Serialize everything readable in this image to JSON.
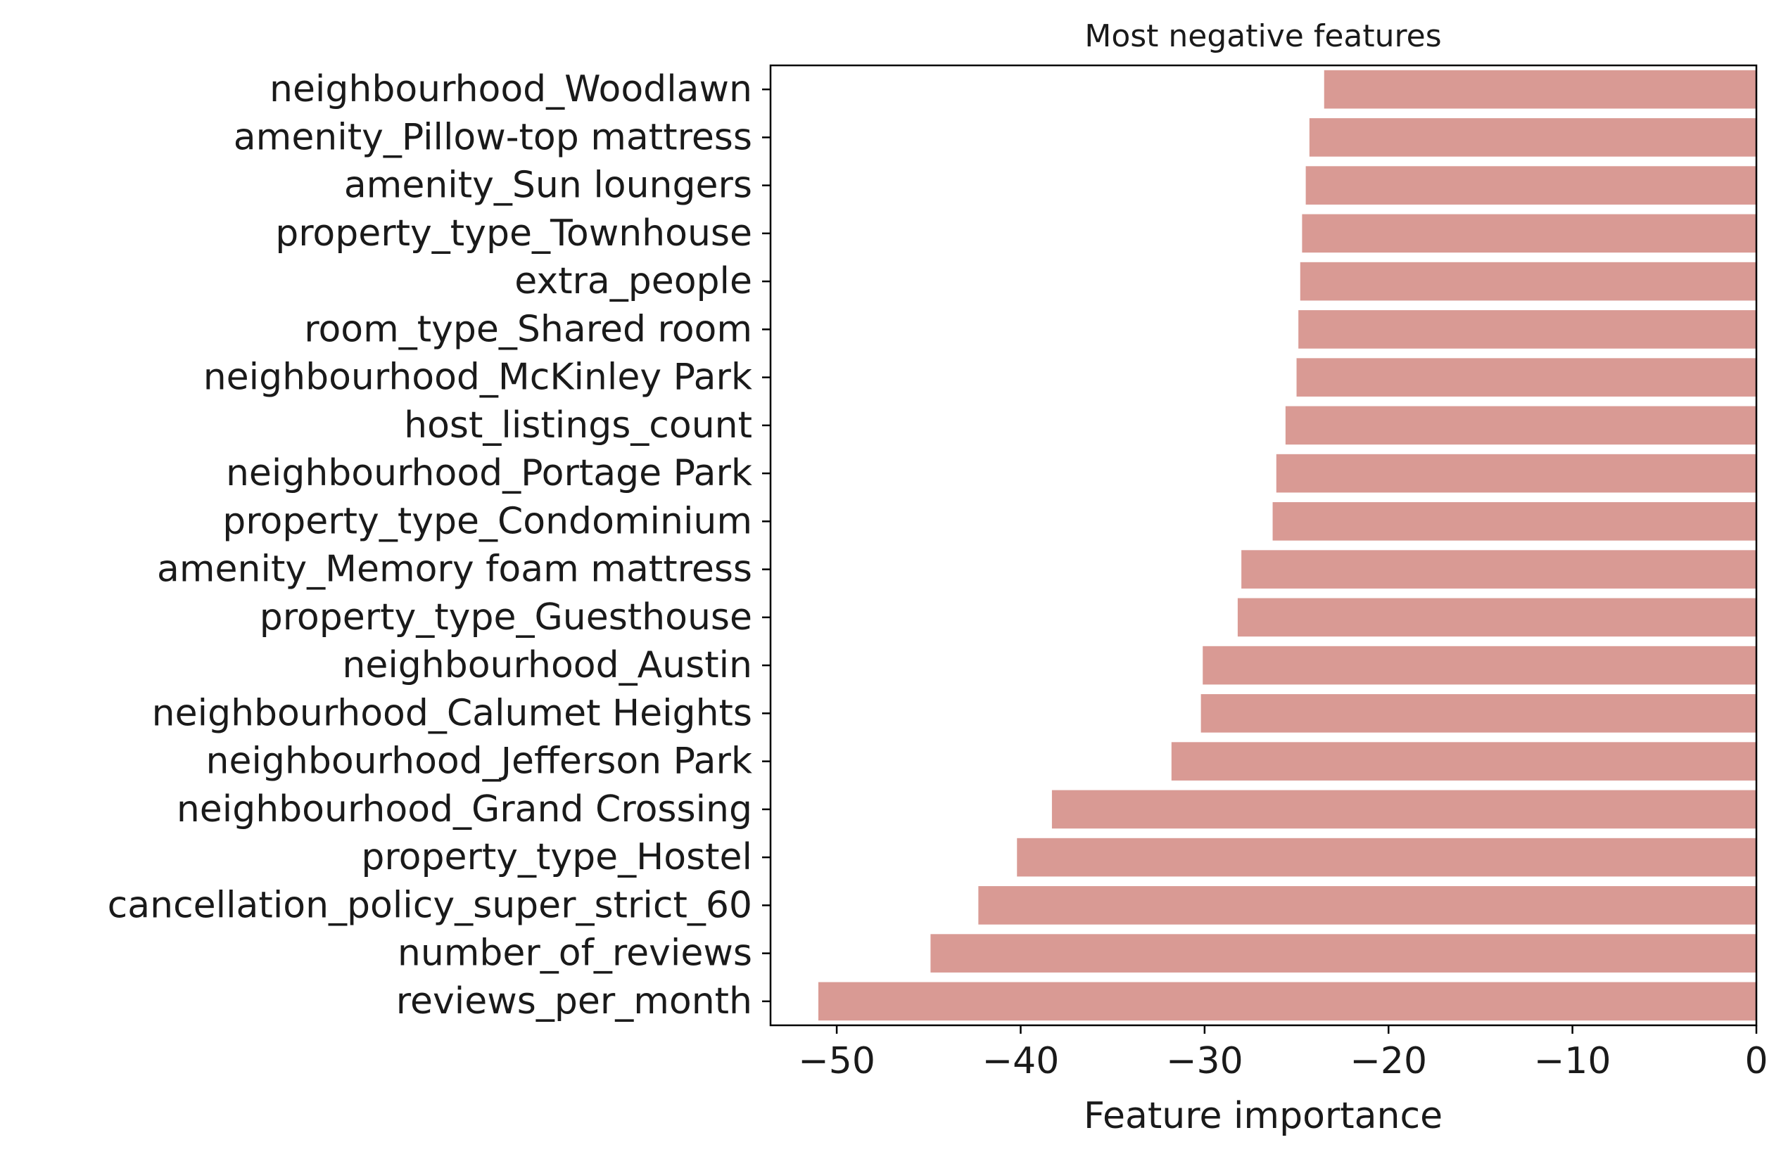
{
  "chart_data": {
    "type": "bar",
    "orientation": "horizontal",
    "title": "Most negative features",
    "xlabel": "Feature importance",
    "ylabel": "",
    "categories": [
      "neighbourhood_Woodlawn",
      "amenity_Pillow-top mattress",
      "amenity_Sun loungers",
      "property_type_Townhouse",
      "extra_people",
      "room_type_Shared room",
      "neighbourhood_McKinley Park",
      "host_listings_count",
      "neighbourhood_Portage Park",
      "property_type_Condominium",
      "amenity_Memory foam mattress",
      "property_type_Guesthouse",
      "neighbourhood_Austin",
      "neighbourhood_Calumet Heights",
      "neighbourhood_Jefferson Park",
      "neighbourhood_Grand Crossing",
      "property_type_Hostel",
      "cancellation_policy_super_strict_60",
      "number_of_reviews",
      "reviews_per_month"
    ],
    "values": [
      -23.5,
      -24.3,
      -24.5,
      -24.7,
      -24.8,
      -24.9,
      -25.0,
      -25.6,
      -26.1,
      -26.3,
      -28.0,
      -28.2,
      -30.1,
      -30.2,
      -31.8,
      -38.3,
      -40.2,
      -42.3,
      -44.9,
      -51.0
    ],
    "xlim": [
      -53.6,
      0
    ],
    "xticks": [
      -50,
      -40,
      -30,
      -20,
      -10,
      0
    ],
    "xtick_labels": [
      "−50",
      "−40",
      "−30",
      "−20",
      "−10",
      "0"
    ],
    "grid": false,
    "bar_color": "#d99a94",
    "axis_color": "#000000"
  }
}
